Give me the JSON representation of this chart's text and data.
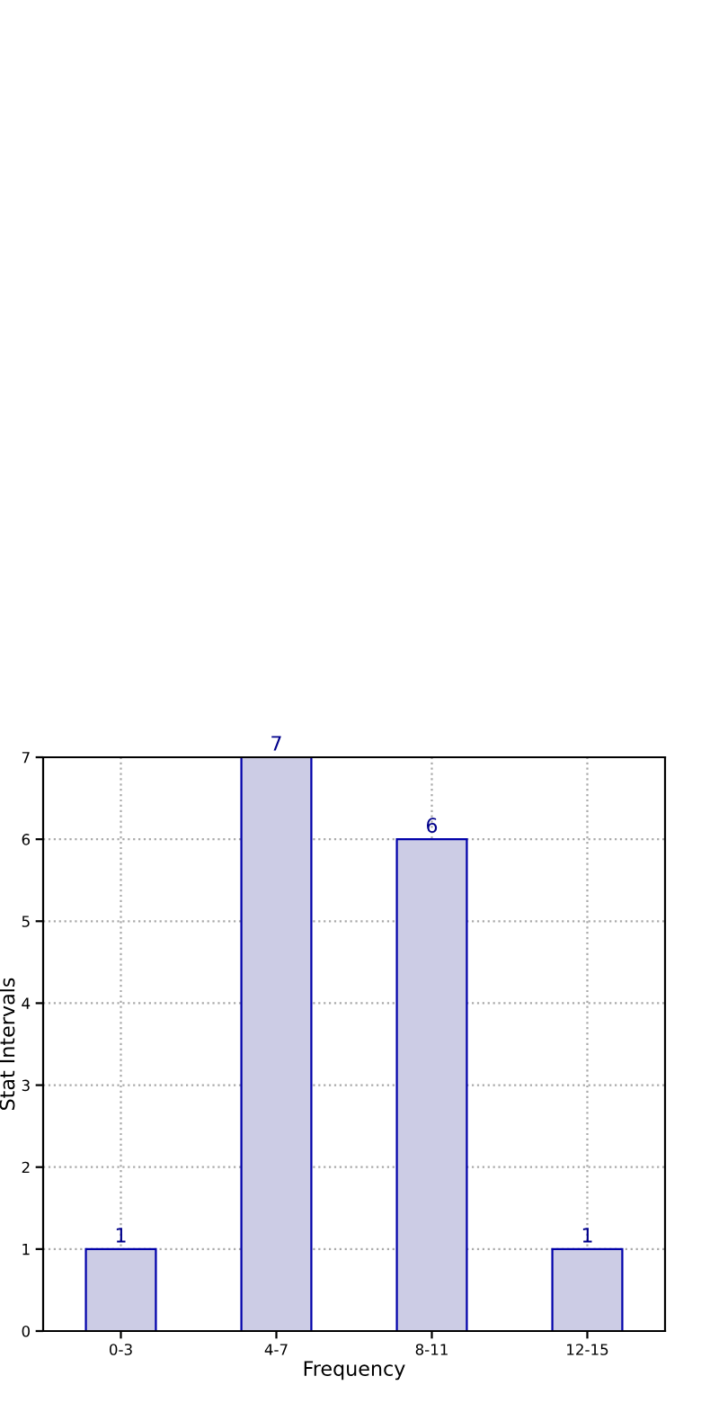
{
  "chart_data": {
    "type": "bar",
    "xlabel": "Frequency",
    "ylabel": "Stat Intervals",
    "categories": [
      "0-3",
      "4-7",
      "8-11",
      "12-15"
    ],
    "series": [
      {
        "color": "#cccce5",
        "values": [
          1,
          7,
          6,
          1
        ]
      }
    ],
    "ylim": [
      0,
      7
    ],
    "yticks": [
      0,
      1,
      2,
      3,
      4,
      5,
      6,
      7
    ],
    "grid": true,
    "line_style": "dotted",
    "data_labels": true
  }
}
